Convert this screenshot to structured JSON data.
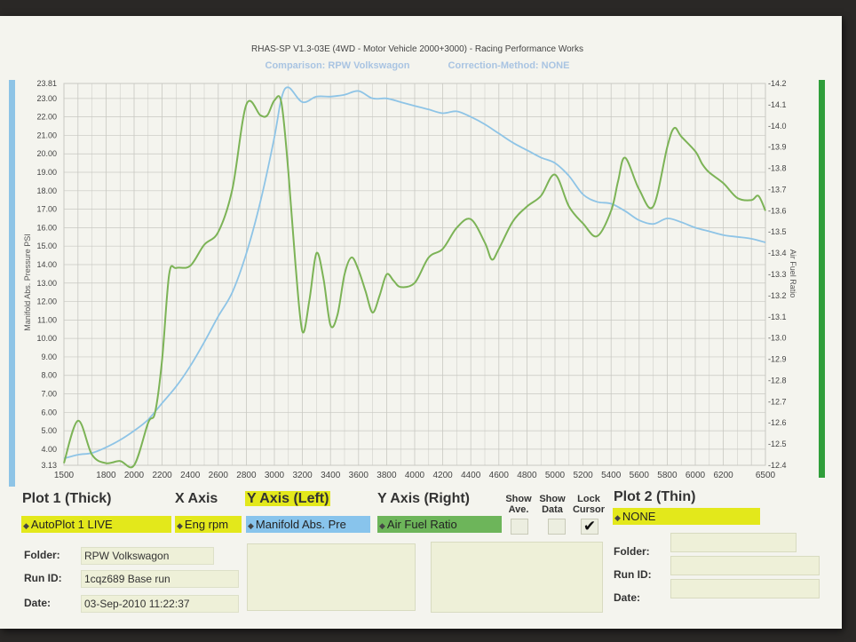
{
  "header": {
    "title": "RHAS-SP V1.3-03E  (4WD - Motor Vehicle 2000+3000) - Racing Performance Works",
    "comparison": "Comparison: RPW Volkswagon",
    "correction": "Correction-Method: NONE"
  },
  "colors": {
    "left_series": "#8ec4e6",
    "right_series": "#7cb356",
    "left_axis_bar": "#8ec4e6",
    "right_axis_bar": "#2f9e3a",
    "grid": "#c8c8c2"
  },
  "chart_data": {
    "type": "line",
    "xlim": [
      1500,
      6500
    ],
    "x_ticks": [
      "1500",
      "1800",
      "2000",
      "2200",
      "2400",
      "2600",
      "2800",
      "3000",
      "3200",
      "3400",
      "3600",
      "3800",
      "4000",
      "4200",
      "4400",
      "4600",
      "4800",
      "5000",
      "5200",
      "5400",
      "5600",
      "5800",
      "6000",
      "6200",
      "6500"
    ],
    "ylabel_left": "Manifold Abs. Pressure PSI",
    "ylim_left": [
      3.13,
      23.81
    ],
    "y_ticks_left": [
      "3.13",
      "4.00",
      "5.00",
      "6.00",
      "7.00",
      "8.00",
      "9.00",
      "10.00",
      "11.00",
      "12.00",
      "13.00",
      "14.00",
      "15.00",
      "16.00",
      "17.00",
      "18.00",
      "19.00",
      "20.00",
      "21.00",
      "22.00",
      "23.00",
      "23.81"
    ],
    "ylabel_right": "Air Fuel Ratio",
    "ylim_right": [
      12.4,
      14.2
    ],
    "y_ticks_right": [
      "12.4",
      "12.5",
      "12.6",
      "12.7",
      "12.8",
      "12.9",
      "13.0",
      "13.1",
      "13.2",
      "13.3",
      "13.4",
      "13.5",
      "13.6",
      "13.7",
      "13.8",
      "13.9",
      "14.0",
      "14.1",
      "14.2"
    ],
    "grid": true,
    "series": [
      {
        "axis": "left",
        "x": [
          1500,
          1600,
          1700,
          1800,
          1900,
          2000,
          2100,
          2200,
          2300,
          2400,
          2500,
          2600,
          2700,
          2800,
          2900,
          3000,
          3050,
          3100,
          3200,
          3300,
          3400,
          3500,
          3600,
          3700,
          3800,
          3900,
          4000,
          4100,
          4200,
          4300,
          4400,
          4500,
          4600,
          4700,
          4800,
          4900,
          5000,
          5100,
          5200,
          5300,
          5400,
          5500,
          5600,
          5700,
          5800,
          5900,
          6000,
          6100,
          6200,
          6300,
          6400,
          6500
        ],
        "y": [
          3.5,
          3.7,
          3.8,
          4.1,
          4.5,
          5.0,
          5.6,
          6.5,
          7.4,
          8.5,
          9.8,
          11.2,
          12.5,
          14.6,
          17.4,
          20.9,
          23.0,
          23.6,
          22.8,
          23.1,
          23.1,
          23.2,
          23.4,
          23.0,
          23.0,
          22.8,
          22.6,
          22.4,
          22.2,
          22.3,
          22.0,
          21.6,
          21.1,
          20.6,
          20.2,
          19.8,
          19.5,
          18.8,
          17.8,
          17.4,
          17.3,
          16.9,
          16.4,
          16.2,
          16.5,
          16.3,
          16.0,
          15.8,
          15.6,
          15.5,
          15.4,
          15.2
        ]
      },
      {
        "axis": "right",
        "x": [
          1500,
          1600,
          1700,
          1800,
          1900,
          2000,
          2100,
          2150,
          2200,
          2250,
          2300,
          2400,
          2500,
          2600,
          2700,
          2800,
          2900,
          2950,
          3000,
          3050,
          3100,
          3150,
          3200,
          3250,
          3300,
          3350,
          3400,
          3450,
          3500,
          3550,
          3600,
          3650,
          3700,
          3750,
          3800,
          3850,
          3900,
          4000,
          4100,
          4200,
          4300,
          4400,
          4500,
          4550,
          4600,
          4700,
          4800,
          4900,
          5000,
          5100,
          5200,
          5300,
          5400,
          5450,
          5500,
          5600,
          5700,
          5800,
          5850,
          5900,
          6000,
          6050,
          6100,
          6200,
          6300,
          6400,
          6450,
          6500
        ],
        "y": [
          12.41,
          12.61,
          12.45,
          12.41,
          12.42,
          12.4,
          12.6,
          12.65,
          12.9,
          13.3,
          13.33,
          13.34,
          13.44,
          13.5,
          13.7,
          14.1,
          14.05,
          14.05,
          14.12,
          14.11,
          13.78,
          13.35,
          13.03,
          13.18,
          13.4,
          13.28,
          13.06,
          13.11,
          13.3,
          13.38,
          13.32,
          13.22,
          13.12,
          13.2,
          13.3,
          13.27,
          13.24,
          13.26,
          13.38,
          13.42,
          13.52,
          13.56,
          13.45,
          13.37,
          13.42,
          13.55,
          13.62,
          13.67,
          13.77,
          13.62,
          13.54,
          13.48,
          13.6,
          13.74,
          13.85,
          13.7,
          13.62,
          13.9,
          13.99,
          13.95,
          13.88,
          13.82,
          13.78,
          13.73,
          13.66,
          13.65,
          13.67,
          13.6
        ]
      }
    ]
  },
  "panel": {
    "plot1": {
      "header": "Plot 1 (Thick)",
      "value": "AutoPlot 1 LIVE"
    },
    "xaxis": {
      "header": "X Axis",
      "value": "Eng rpm"
    },
    "yleft": {
      "header": "Y Axis (Left)",
      "value": "Manifold Abs. Pre"
    },
    "yright": {
      "header": "Y Axis (Right)",
      "value": "Air Fuel Ratio"
    },
    "show_ave": {
      "label1": "Show",
      "label2": "Ave."
    },
    "show_data": {
      "label1": "Show",
      "label2": "Data"
    },
    "lock_cursor": {
      "label1": "Lock",
      "label2": "Cursor"
    },
    "plot2": {
      "header": "Plot 2 (Thin)",
      "value": "NONE"
    },
    "left_info": {
      "folder_label": "Folder:",
      "folder": "RPW Volkswagon",
      "runid_label": "Run ID:",
      "runid": "1cqz689 Base run",
      "date_label": "Date:",
      "date": "03-Sep-2010  11:22:37"
    },
    "right_info": {
      "folder_label": "Folder:",
      "runid_label": "Run ID:",
      "date_label": "Date:"
    },
    "arrow_glyph": "◆",
    "check_glyph": "✔"
  }
}
